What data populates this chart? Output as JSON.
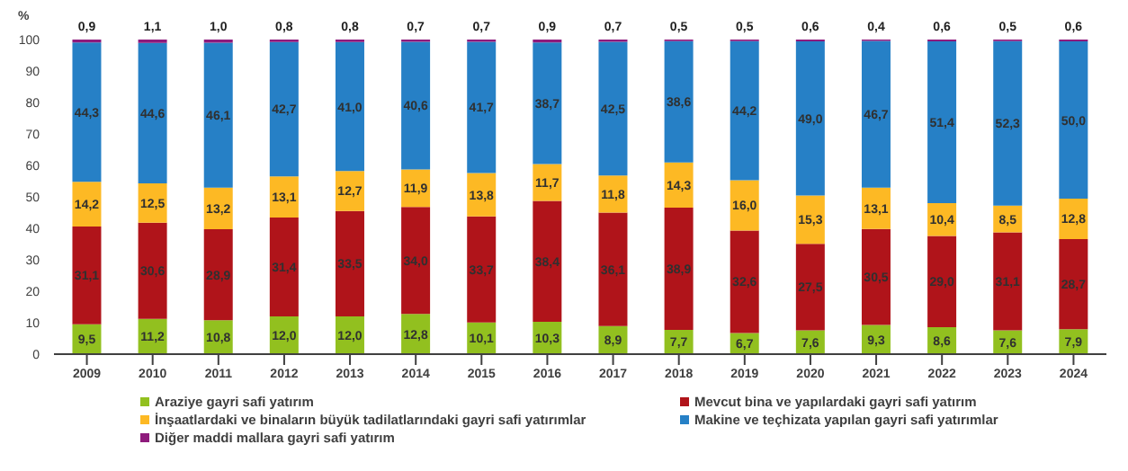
{
  "chart_data": {
    "type": "bar",
    "stacked": true,
    "ylabel": "%",
    "categories": [
      "2009",
      "2010",
      "2011",
      "2012",
      "2013",
      "2014",
      "2015",
      "2016",
      "2017",
      "2018",
      "2019",
      "2020",
      "2021",
      "2022",
      "2023",
      "2024"
    ],
    "series": [
      {
        "name": "Araziye gayri safi yatırım",
        "color": "#92c01f",
        "values": [
          9.5,
          11.2,
          10.8,
          12.0,
          12.0,
          12.8,
          10.1,
          10.3,
          8.9,
          7.7,
          6.7,
          7.6,
          9.3,
          8.6,
          7.6,
          7.9
        ],
        "value_labels": [
          "9,5",
          "11,2",
          "10,8",
          "12,0",
          "12,0",
          "12,8",
          "10,1",
          "10,3",
          "8,9",
          "7,7",
          "6,7",
          "7,6",
          "9,3",
          "8,6",
          "7,6",
          "7,9"
        ]
      },
      {
        "name": "Mevcut bina ve yapılardaki gayri safi yatırım",
        "color": "#b0141a",
        "values": [
          31.1,
          30.6,
          28.9,
          31.4,
          33.5,
          34.0,
          33.7,
          38.4,
          36.1,
          38.9,
          32.6,
          27.5,
          30.5,
          29.0,
          31.1,
          28.7
        ],
        "value_labels": [
          "31,1",
          "30,6",
          "28,9",
          "31,4",
          "33,5",
          "34,0",
          "33,7",
          "38,4",
          "36,1",
          "38,9",
          "32,6",
          "27,5",
          "30,5",
          "29,0",
          "31,1",
          "28,7"
        ]
      },
      {
        "name": "İnşaatlardaki ve binaların büyük tadilatlarındaki gayri safi yatırımlar",
        "color": "#fdb924",
        "values": [
          14.2,
          12.5,
          13.2,
          13.1,
          12.7,
          11.9,
          13.8,
          11.7,
          11.8,
          14.3,
          16.0,
          15.3,
          13.1,
          10.4,
          8.5,
          12.8
        ],
        "value_labels": [
          "14,2",
          "12,5",
          "13,2",
          "13,1",
          "12,7",
          "11,9",
          "13,8",
          "11,7",
          "11,8",
          "14,3",
          "16,0",
          "15,3",
          "13,1",
          "10,4",
          "8,5",
          "12,8"
        ]
      },
      {
        "name": "Makine ve teçhizata yapılan gayri safi yatırımlar",
        "color": "#2680c6",
        "values": [
          44.3,
          44.6,
          46.1,
          42.7,
          41.0,
          40.6,
          41.7,
          38.7,
          42.5,
          38.6,
          44.2,
          49.0,
          46.7,
          51.4,
          52.3,
          50.0
        ],
        "value_labels": [
          "44,3",
          "44,6",
          "46,1",
          "42,7",
          "41,0",
          "40,6",
          "41,7",
          "38,7",
          "42,5",
          "38,6",
          "44,2",
          "49,0",
          "46,7",
          "51,4",
          "52,3",
          "50,0"
        ]
      },
      {
        "name": "Diğer maddi mallara gayri safi yatırım",
        "color": "#8e1b7c",
        "values": [
          0.9,
          1.1,
          1.0,
          0.8,
          0.8,
          0.7,
          0.7,
          0.9,
          0.7,
          0.5,
          0.5,
          0.6,
          0.4,
          0.6,
          0.5,
          0.6
        ],
        "value_labels": [
          "0,9",
          "1,1",
          "1,0",
          "0,8",
          "0,8",
          "0,7",
          "0,7",
          "0,9",
          "0,7",
          "0,5",
          "0,5",
          "0,6",
          "0,4",
          "0,6",
          "0,5",
          "0,6"
        ]
      }
    ],
    "ylim": [
      0,
      100
    ],
    "yticks": [
      0,
      10,
      20,
      30,
      40,
      50,
      60,
      70,
      80,
      90,
      100
    ],
    "legend": "bottom"
  }
}
